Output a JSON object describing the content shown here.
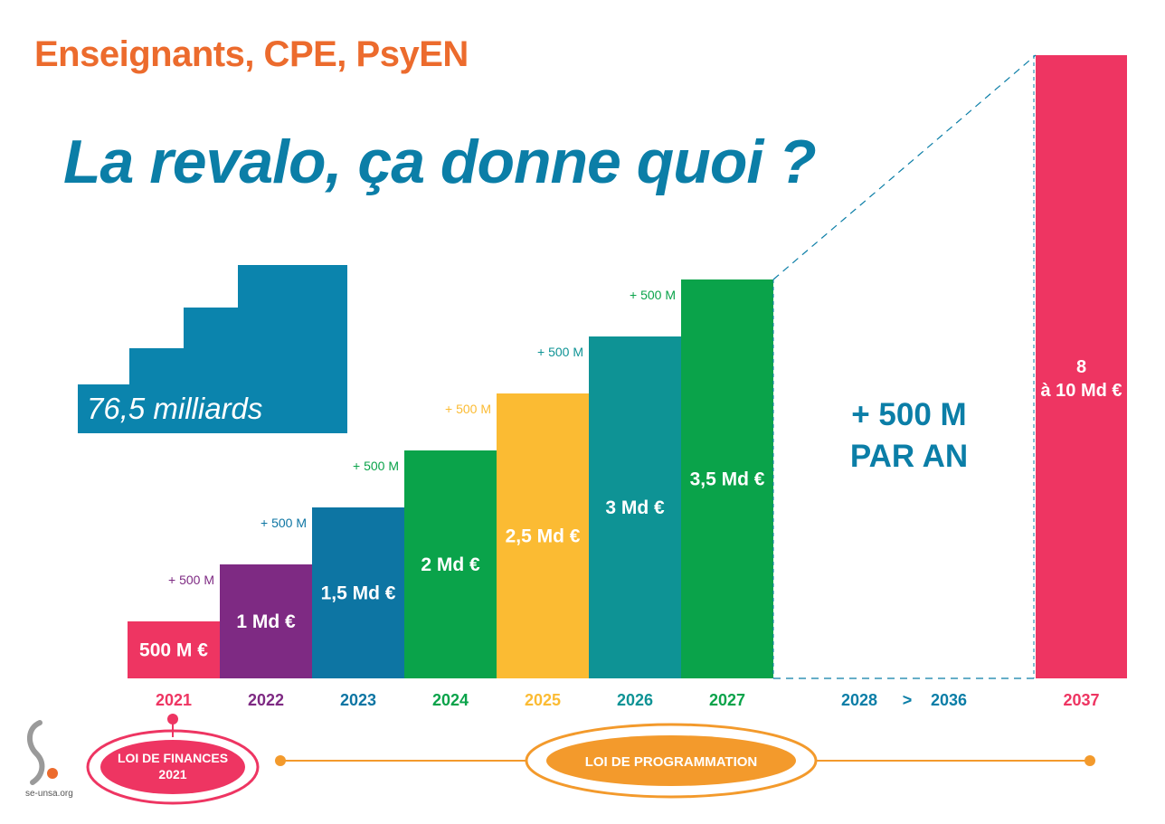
{
  "header": {
    "subtitle": "Enseignants, CPE, PsyEN",
    "title": "La revalo, ça donne quoi ?"
  },
  "total_badge": {
    "text": "76,5 milliards d’euros",
    "color": "#0b84ad"
  },
  "projection": {
    "label_line1": "+ 500 M",
    "label_line2": "PAR AN",
    "period_start": "2028",
    "period_sep": ">",
    "period_end": "2036"
  },
  "timeline": {
    "finances_label": "LOI DE FINANCES\n2021",
    "programmation_label": "LOI DE PROGRAMMATION"
  },
  "logo": {
    "text": "se-unsa.org"
  },
  "colors": {
    "orange": "#ec6b2d",
    "blue": "#0b7ea7",
    "pink": "#ee3562",
    "timeline_orange": "#f39a2c"
  },
  "chart_data": {
    "type": "bar",
    "categories": [
      "2021",
      "2022",
      "2023",
      "2024",
      "2025",
      "2026",
      "2027",
      "2037"
    ],
    "values": [
      0.5,
      1,
      1.5,
      2,
      2.5,
      3,
      3.5,
      9
    ],
    "value_labels": [
      "500 M €",
      "1 Md €",
      "1,5 Md €",
      "2 Md €",
      "2,5 Md €",
      "3 Md €",
      "3,5 Md €",
      "8\nà 10 Md €"
    ],
    "increment_labels": [
      "+ 500 M",
      "+ 500 M",
      "+ 500 M",
      "+ 500 M",
      "+ 500 M",
      "+ 500 M",
      "",
      ""
    ],
    "bar_colors": [
      "#ee3562",
      "#7e2a83",
      "#0d75a3",
      "#0aa34a",
      "#fbbb33",
      "#0e9395",
      "#0aa34a",
      "#ee3562"
    ],
    "label_colors": [
      "#ee3562",
      "#7e2a83",
      "#0d75a3",
      "#0aa34a",
      "#fbbb33",
      "#0e9395",
      "#0aa34a",
      "#ee3562"
    ],
    "unit": "Md €",
    "title": "",
    "xlabel": "",
    "ylabel": ""
  }
}
